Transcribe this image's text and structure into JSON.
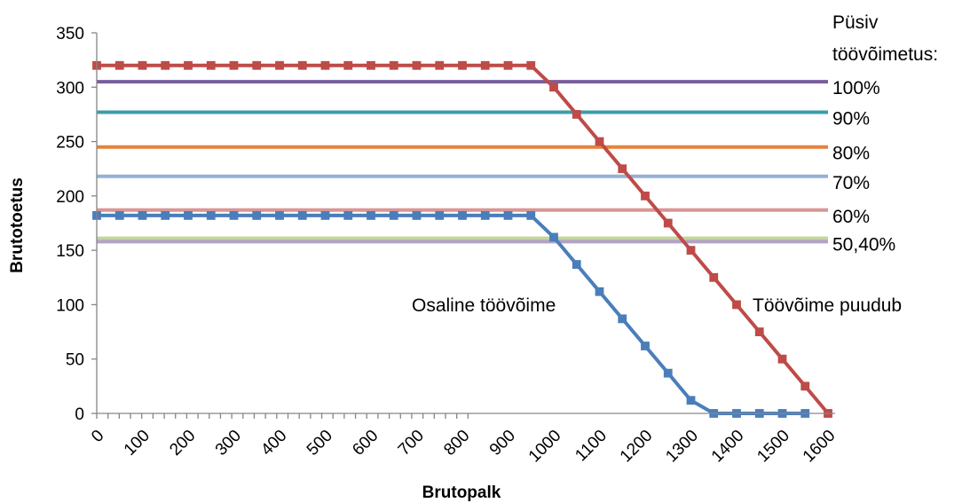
{
  "chart_data": {
    "type": "line",
    "xlabel": "Brutopalk",
    "ylabel": "Brutotoetus",
    "xlim": [
      0,
      1600
    ],
    "ylim": [
      0,
      350
    ],
    "x_ticks": [
      0,
      100,
      200,
      300,
      400,
      500,
      600,
      700,
      800,
      900,
      1000,
      1100,
      1200,
      1300,
      1400,
      1500,
      1600
    ],
    "y_ticks": [
      0,
      50,
      100,
      150,
      200,
      250,
      300,
      350
    ],
    "grid": false,
    "legend_title": [
      "Püsiv",
      "töövõimetus:"
    ],
    "level_series": [
      {
        "name": "100%",
        "value": 305,
        "color": "#7a5e9c"
      },
      {
        "name": "90%",
        "value": 277,
        "color": "#3b9caa"
      },
      {
        "name": "80%",
        "value": 245,
        "color": "#e5823a"
      },
      {
        "name": "70%",
        "value": 218,
        "color": "#96b0d6"
      },
      {
        "name": "60%",
        "value": 187,
        "color": "#d99694"
      },
      {
        "name": "50,40%",
        "value": 161,
        "color": "#c3d69b",
        "value2": 158,
        "color2": "#b2a2c7"
      }
    ],
    "series": [
      {
        "name": "Töövõime puudub",
        "color": "#be4b48",
        "x": [
          0,
          50,
          100,
          150,
          200,
          250,
          300,
          350,
          400,
          450,
          500,
          550,
          600,
          650,
          700,
          750,
          800,
          850,
          900,
          950,
          1000,
          1050,
          1100,
          1150,
          1200,
          1250,
          1300,
          1350,
          1400,
          1450,
          1500,
          1550,
          1600
        ],
        "y": [
          320,
          320,
          320,
          320,
          320,
          320,
          320,
          320,
          320,
          320,
          320,
          320,
          320,
          320,
          320,
          320,
          320,
          320,
          320,
          320,
          300,
          275,
          250,
          225,
          200,
          175,
          150,
          125,
          100,
          75,
          50,
          25,
          0
        ]
      },
      {
        "name": "Osaline töövõime",
        "color": "#4a7ebb",
        "x": [
          0,
          50,
          100,
          150,
          200,
          250,
          300,
          350,
          400,
          450,
          500,
          550,
          600,
          650,
          700,
          750,
          800,
          850,
          900,
          950,
          1000,
          1050,
          1100,
          1150,
          1200,
          1250,
          1300,
          1350,
          1400,
          1450,
          1500,
          1550
        ],
        "y": [
          182,
          182,
          182,
          182,
          182,
          182,
          182,
          182,
          182,
          182,
          182,
          182,
          182,
          182,
          182,
          182,
          182,
          182,
          182,
          182,
          162,
          137,
          112,
          87,
          62,
          37,
          12,
          0,
          0,
          0,
          0,
          0
        ]
      }
    ]
  }
}
